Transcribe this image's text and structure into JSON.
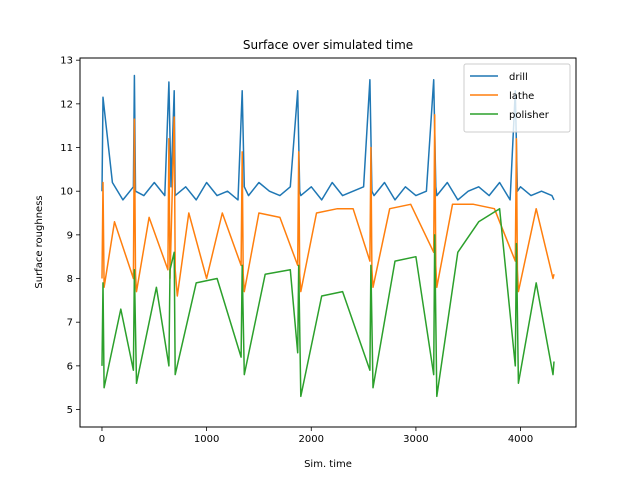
{
  "chart_data": {
    "type": "line",
    "title": "Surface over simulated time",
    "xlabel": "Sim. time",
    "ylabel": "Surface roughness",
    "xlim": [
      -210,
      4530
    ],
    "ylim": [
      4.6,
      13.05
    ],
    "xticks": [
      0,
      1000,
      2000,
      3000,
      4000
    ],
    "yticks": [
      5,
      6,
      7,
      8,
      9,
      10,
      11,
      12,
      13
    ],
    "legend": "top-right",
    "grid": false,
    "series": [
      {
        "name": "drill",
        "color": "#1f77b4",
        "x": [
          0,
          10,
          100,
          200,
          300,
          310,
          320,
          400,
          500,
          600,
          640,
          660,
          690,
          700,
          800,
          900,
          1000,
          1100,
          1200,
          1300,
          1340,
          1360,
          1400,
          1500,
          1600,
          1700,
          1800,
          1870,
          1890,
          1900,
          2000,
          2100,
          2200,
          2300,
          2400,
          2500,
          2560,
          2580,
          2600,
          2700,
          2800,
          2900,
          3000,
          3100,
          3170,
          3190,
          3200,
          3300,
          3400,
          3500,
          3600,
          3700,
          3800,
          3900,
          3950,
          3970,
          4000,
          4100,
          4200,
          4300,
          4320
        ],
        "values": [
          10.0,
          12.15,
          10.2,
          9.8,
          10.1,
          12.65,
          10.0,
          9.9,
          10.2,
          9.9,
          12.5,
          10.1,
          12.3,
          9.9,
          10.1,
          9.8,
          10.2,
          9.9,
          10.0,
          9.8,
          12.3,
          10.1,
          9.9,
          10.2,
          10.0,
          9.9,
          10.1,
          12.3,
          10.0,
          9.9,
          10.1,
          9.8,
          10.2,
          9.9,
          10.0,
          10.1,
          12.55,
          10.0,
          9.9,
          10.2,
          9.8,
          10.1,
          9.9,
          10.0,
          12.55,
          10.1,
          9.9,
          10.2,
          9.8,
          10.0,
          10.1,
          9.9,
          10.2,
          9.8,
          12.3,
          10.0,
          10.1,
          9.9,
          10.0,
          9.9,
          9.8
        ]
      },
      {
        "name": "lathe",
        "color": "#ff7f0e",
        "x": [
          0,
          10,
          20,
          120,
          300,
          310,
          320,
          330,
          450,
          630,
          640,
          650,
          690,
          700,
          720,
          830,
          1000,
          1150,
          1330,
          1340,
          1350,
          1360,
          1500,
          1700,
          1870,
          1880,
          1890,
          1900,
          2050,
          2250,
          2400,
          2560,
          2570,
          2580,
          2590,
          2750,
          2950,
          3170,
          3180,
          3190,
          3200,
          3350,
          3550,
          3750,
          3950,
          3960,
          3970,
          3980,
          4150,
          4310,
          4320
        ],
        "values": [
          8.0,
          10.2,
          7.8,
          9.3,
          8.0,
          11.65,
          8.1,
          7.7,
          9.4,
          8.2,
          11.2,
          8.0,
          11.7,
          8.2,
          7.6,
          9.5,
          8.0,
          9.5,
          8.3,
          10.9,
          8.1,
          7.7,
          9.5,
          9.4,
          8.3,
          10.9,
          8.1,
          7.7,
          9.5,
          9.6,
          9.6,
          8.4,
          11.0,
          8.2,
          7.8,
          9.6,
          9.7,
          8.6,
          11.75,
          8.3,
          7.8,
          9.7,
          9.7,
          9.6,
          8.4,
          11.2,
          8.2,
          7.7,
          9.6,
          8.0,
          8.1
        ]
      },
      {
        "name": "polisher",
        "color": "#2ca02c",
        "x": [
          0,
          10,
          20,
          180,
          300,
          310,
          330,
          520,
          640,
          650,
          690,
          700,
          900,
          1100,
          1330,
          1340,
          1360,
          1560,
          1800,
          1870,
          1880,
          1900,
          2100,
          2300,
          2560,
          2570,
          2590,
          2800,
          3000,
          3170,
          3180,
          3200,
          3400,
          3600,
          3800,
          3950,
          3960,
          3980,
          4150,
          4310,
          4320
        ],
        "values": [
          6.0,
          7.9,
          5.5,
          7.3,
          5.9,
          8.2,
          5.6,
          7.8,
          6.0,
          8.2,
          8.6,
          5.8,
          7.9,
          8.0,
          6.2,
          8.3,
          5.8,
          8.1,
          8.2,
          6.3,
          8.3,
          5.3,
          7.6,
          7.7,
          5.9,
          8.3,
          5.5,
          8.4,
          8.5,
          5.8,
          9.0,
          5.3,
          8.6,
          9.3,
          9.6,
          6.0,
          8.8,
          5.6,
          7.9,
          5.8,
          6.1
        ]
      }
    ]
  }
}
